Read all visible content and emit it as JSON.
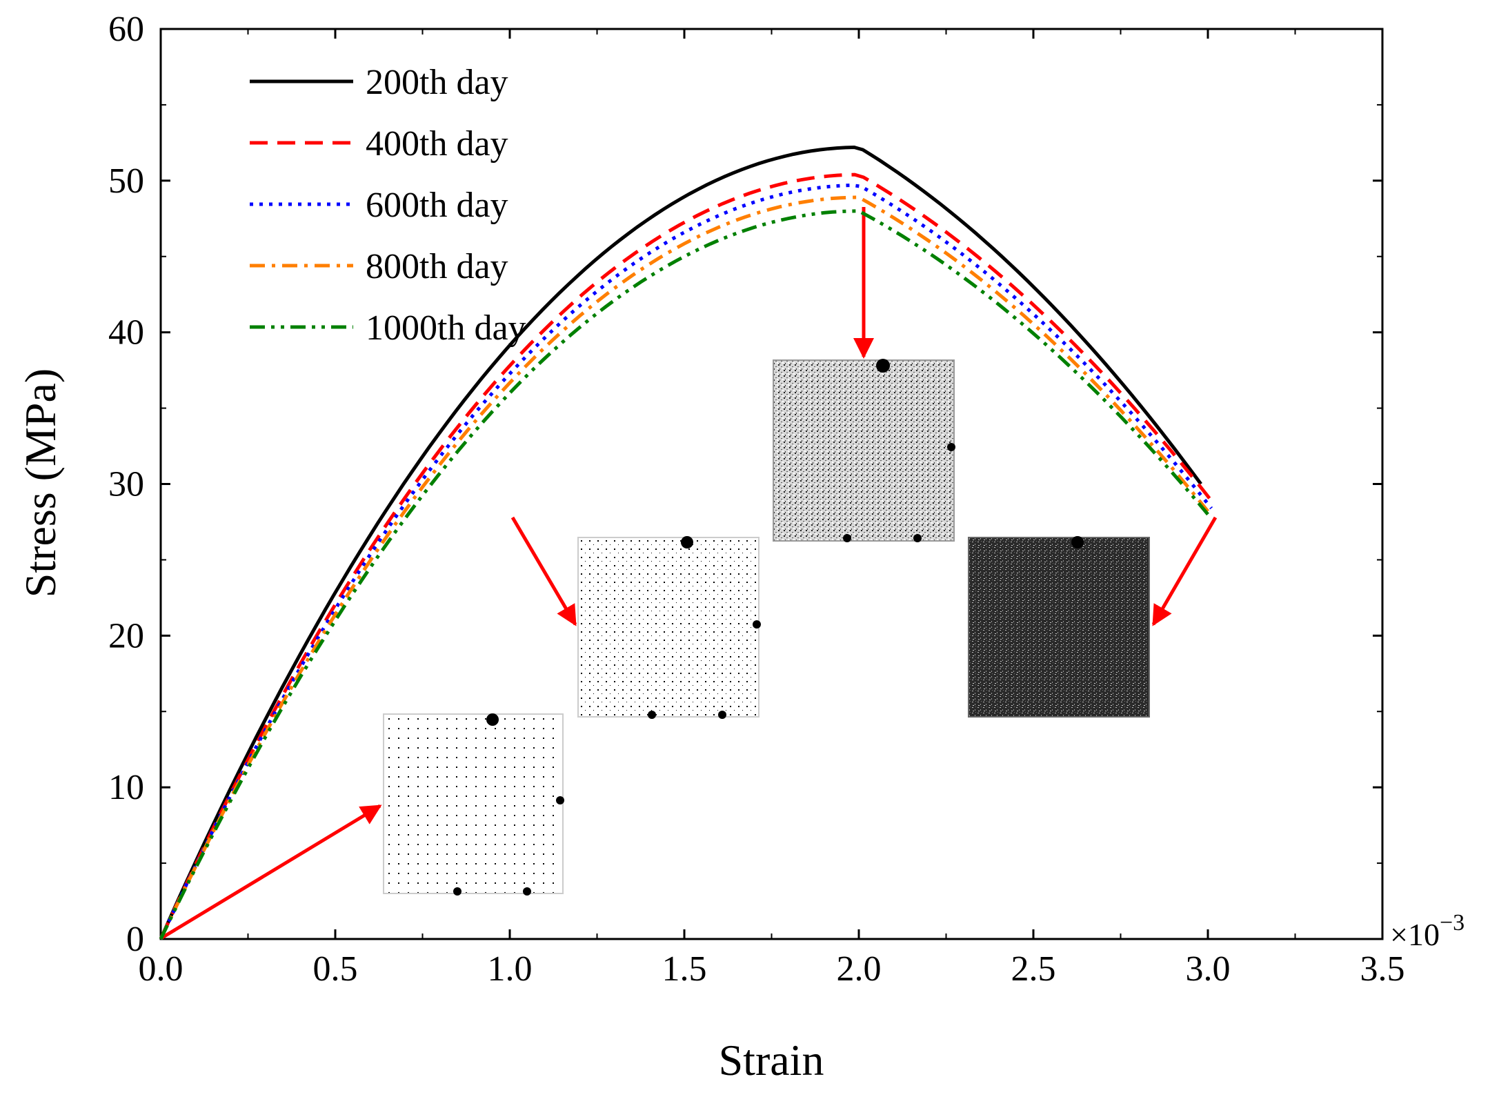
{
  "chart_data": {
    "type": "line",
    "xlabel": "Strain",
    "ylabel": "Stress (MPa)",
    "x_multiplier": "×10",
    "x_multiplier_exp": "−3",
    "xlim": [
      0,
      3.5
    ],
    "ylim": [
      0,
      60
    ],
    "xticks": [
      0.0,
      0.5,
      1.0,
      1.5,
      2.0,
      2.5,
      3.0,
      3.5
    ],
    "xtick_labels": [
      "0.0",
      "0.5",
      "1.0",
      "1.5",
      "2.0",
      "2.5",
      "3.0",
      "3.5"
    ],
    "yticks": [
      0,
      10,
      20,
      30,
      40,
      50,
      60
    ],
    "ytick_labels": [
      "0",
      "10",
      "20",
      "30",
      "40",
      "50",
      "60"
    ],
    "legend_position": "top-left",
    "series": [
      {
        "name": "200th day",
        "color": "#000000",
        "dash": "solid",
        "peak_x": 2.0,
        "peak_y": 52.2,
        "end_x": 2.98,
        "end_y": 30.0
      },
      {
        "name": "400th day",
        "color": "#ff0000",
        "dash": "dash",
        "peak_x": 2.0,
        "peak_y": 50.4,
        "end_x": 3.02,
        "end_y": 28.6
      },
      {
        "name": "600th day",
        "color": "#0000ff",
        "dash": "dot",
        "peak_x": 2.0,
        "peak_y": 49.7,
        "end_x": 3.01,
        "end_y": 28.4
      },
      {
        "name": "800th day",
        "color": "#ff7f00",
        "dash": "dashdot",
        "peak_x": 2.0,
        "peak_y": 48.9,
        "end_x": 3.0,
        "end_y": 28.2
      },
      {
        "name": "1000th day",
        "color": "#008000",
        "dash": "dashdotdot",
        "peak_x": 2.0,
        "peak_y": 48.0,
        "end_x": 3.0,
        "end_y": 28.0
      }
    ],
    "annotations": [
      {
        "name": "damage-image-1",
        "arrow_from": [
          0.0,
          0.0
        ],
        "shade": "light"
      },
      {
        "name": "damage-image-2",
        "arrow_from": [
          1.0,
          28.0
        ],
        "shade": "light"
      },
      {
        "name": "damage-image-3",
        "arrow_from": [
          2.0,
          48.0
        ],
        "shade": "medium"
      },
      {
        "name": "damage-image-4",
        "arrow_from": [
          3.02,
          28.0
        ],
        "shade": "dark"
      }
    ]
  }
}
